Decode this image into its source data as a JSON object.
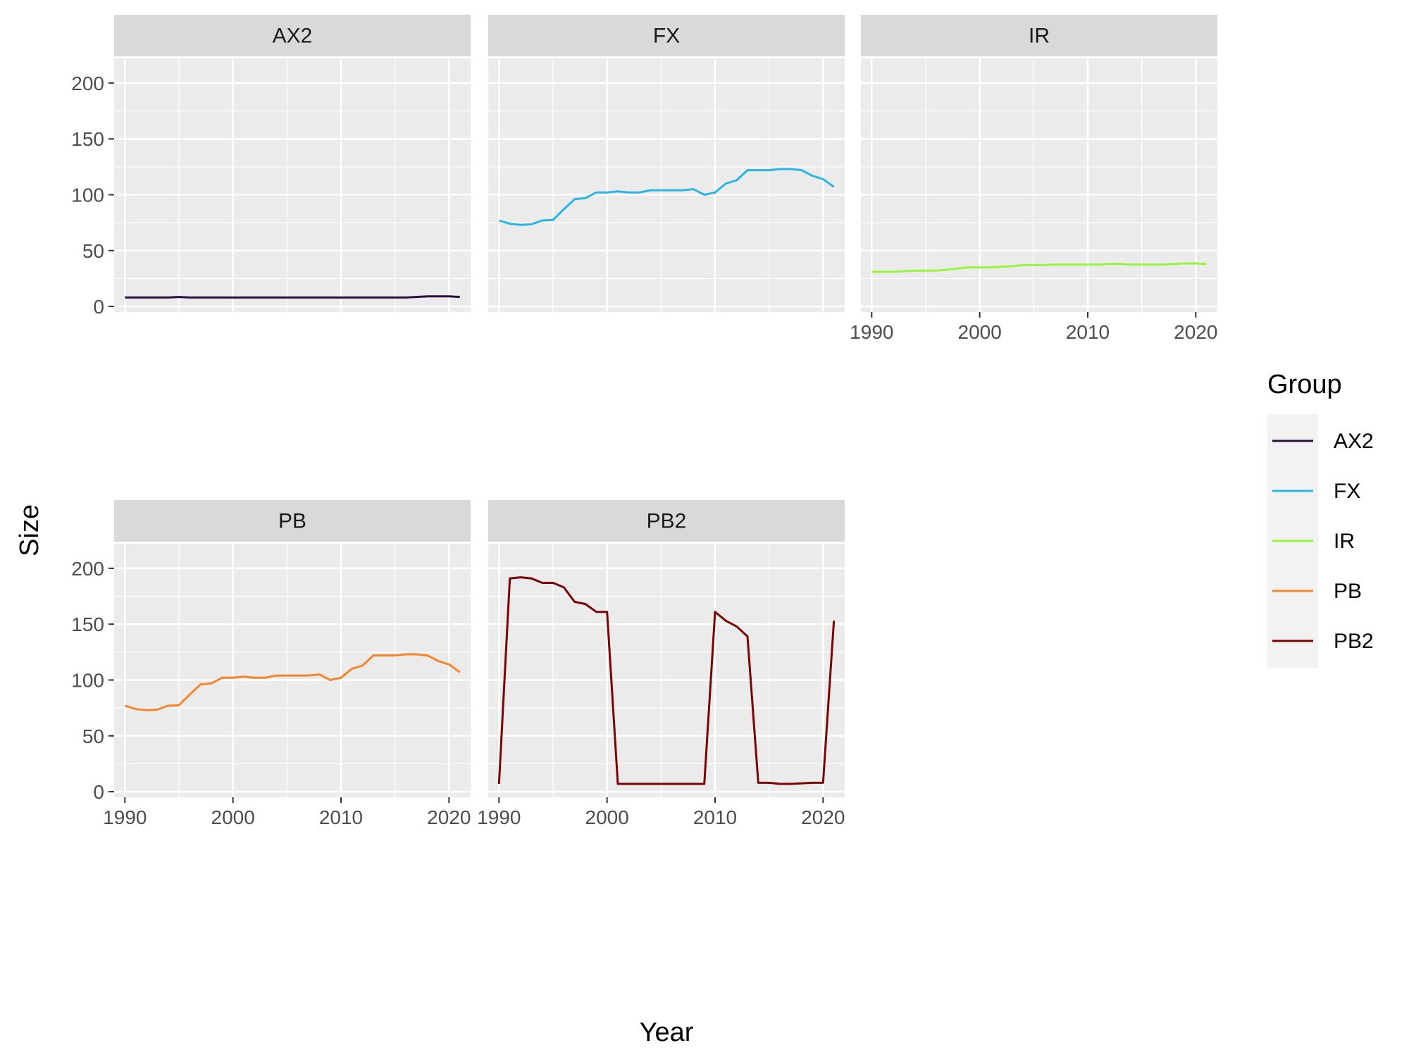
{
  "chart_data": {
    "type": "line",
    "facet": "wrap",
    "xlabel": "Year",
    "ylabel": "Size",
    "x_ticks": [
      1990,
      2000,
      2010,
      2020
    ],
    "y_ticks": [
      0,
      50,
      100,
      150,
      200
    ],
    "xlim": [
      1989,
      2022
    ],
    "ylim": [
      -5,
      222
    ],
    "legend": {
      "title": "Group",
      "position": "right",
      "entries": [
        "AX2",
        "FX",
        "IR",
        "PB",
        "PB2"
      ]
    },
    "panel_background": "#ebebeb",
    "strip_background": "#d9d9d9",
    "grid_color": "#ffffff",
    "x": [
      1990,
      1991,
      1992,
      1993,
      1994,
      1995,
      1996,
      1997,
      1998,
      1999,
      2000,
      2001,
      2002,
      2003,
      2004,
      2005,
      2006,
      2007,
      2008,
      2009,
      2010,
      2011,
      2012,
      2013,
      2014,
      2015,
      2016,
      2017,
      2018,
      2019,
      2020,
      2021
    ],
    "series": [
      {
        "name": "AX2",
        "color": "#2c0f3e",
        "values": [
          8,
          8,
          8,
          8,
          8,
          8.5,
          8,
          8,
          8,
          8,
          8,
          8,
          8,
          8,
          8,
          8,
          8,
          8,
          8,
          8,
          8,
          8,
          8,
          8,
          8,
          8,
          8,
          8.5,
          9,
          9,
          9,
          8.5
        ]
      },
      {
        "name": "FX",
        "color": "#29b6e6",
        "values": [
          77,
          74,
          73,
          73.5,
          77,
          77.5,
          87,
          96,
          97,
          102,
          102,
          103,
          102,
          102,
          104,
          104,
          104,
          104,
          105,
          100,
          102,
          110,
          113,
          122,
          122,
          122,
          123,
          123,
          122,
          117,
          114,
          107
        ]
      },
      {
        "name": "IR",
        "color": "#97f53c",
        "values": [
          31,
          31,
          31,
          31.5,
          32,
          32,
          32,
          33,
          34,
          35,
          35,
          35,
          35.5,
          36,
          37,
          37,
          37,
          37.5,
          37.5,
          37.5,
          37.5,
          37.5,
          38,
          38,
          37.5,
          37.5,
          37.5,
          37.5,
          38,
          38.5,
          38.5,
          38
        ]
      },
      {
        "name": "PB",
        "color": "#f7842a",
        "values": [
          77,
          74,
          73,
          73.5,
          77,
          77.5,
          87,
          96,
          97,
          102,
          102,
          103,
          102,
          102,
          104,
          104,
          104,
          104,
          105,
          100,
          102,
          110,
          113,
          122,
          122,
          122,
          123,
          123,
          122,
          117,
          114,
          107
        ]
      },
      {
        "name": "PB2",
        "color": "#7a0403",
        "values": [
          7,
          191,
          192,
          191,
          187,
          187,
          183,
          170,
          168,
          161,
          161,
          7,
          7,
          7,
          7,
          7,
          7,
          7,
          7,
          7,
          161,
          153,
          148,
          139,
          8,
          8,
          7,
          7,
          7.5,
          8,
          8,
          153
        ]
      }
    ]
  }
}
